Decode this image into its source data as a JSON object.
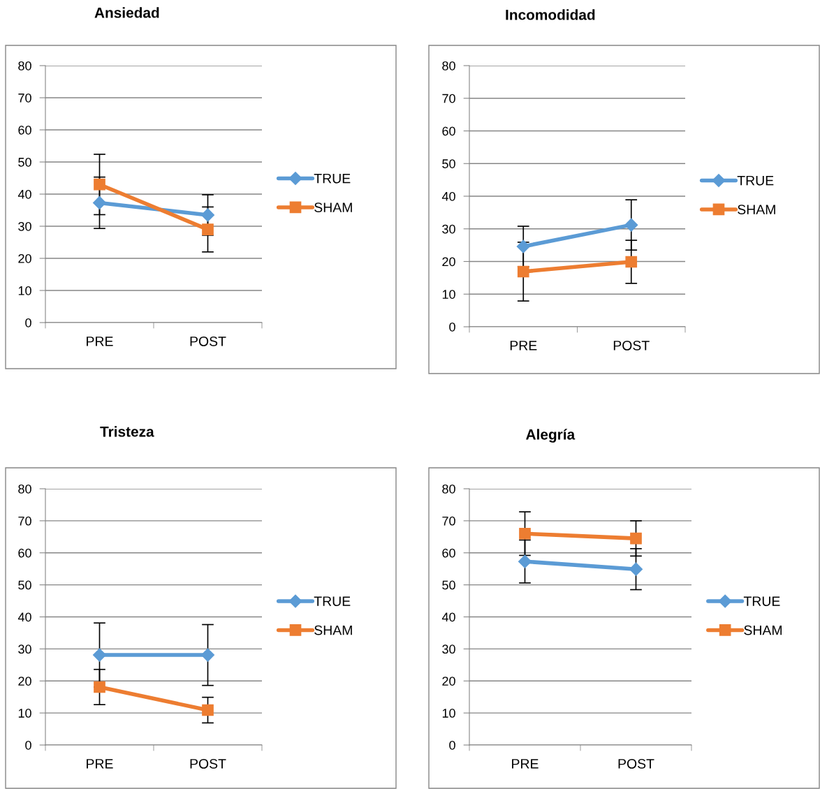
{
  "chart_data": [
    {
      "type": "line",
      "title": "Ansiedad",
      "categories": [
        "PRE",
        "POST"
      ],
      "ylim": [
        0,
        80
      ],
      "yticks": [
        0,
        10,
        20,
        30,
        40,
        50,
        60,
        70,
        80
      ],
      "grid": "y",
      "legend": "right",
      "line_style": "solid",
      "series": [
        {
          "name": "TRUE",
          "color": "#5b9bd5",
          "marker": "diamond",
          "values": [
            37.3,
            33.5
          ],
          "errors": [
            8,
            6.3
          ]
        },
        {
          "name": "SHAM",
          "color": "#ed7d31",
          "marker": "square",
          "values": [
            43,
            29
          ],
          "errors": [
            9.4,
            7
          ]
        }
      ]
    },
    {
      "type": "line",
      "title": "Incomodidad",
      "categories": [
        "PRE",
        "POST"
      ],
      "ylim": [
        0,
        80
      ],
      "yticks": [
        0,
        10,
        20,
        30,
        40,
        50,
        60,
        70,
        80
      ],
      "grid": "y",
      "legend": "right",
      "line_style": "solid",
      "series": [
        {
          "name": "TRUE",
          "color": "#5b9bd5",
          "marker": "diamond",
          "values": [
            24.6,
            31.2
          ],
          "errors": [
            6.2,
            7.7
          ]
        },
        {
          "name": "SHAM",
          "color": "#ed7d31",
          "marker": "square",
          "values": [
            16.9,
            19.9
          ],
          "errors": [
            9,
            6.6
          ]
        }
      ]
    },
    {
      "type": "line",
      "title": "Tristeza",
      "categories": [
        "PRE",
        "POST"
      ],
      "ylim": [
        0,
        80
      ],
      "yticks": [
        0,
        10,
        20,
        30,
        40,
        50,
        60,
        70,
        80
      ],
      "grid": "y",
      "legend": "right",
      "line_style": "solid",
      "series": [
        {
          "name": "TRUE",
          "color": "#5b9bd5",
          "marker": "diamond",
          "values": [
            28.1,
            28.1
          ],
          "errors": [
            10,
            9.5
          ]
        },
        {
          "name": "SHAM",
          "color": "#ed7d31",
          "marker": "square",
          "values": [
            18.1,
            10.9
          ],
          "errors": [
            5.5,
            4
          ]
        }
      ]
    },
    {
      "type": "line",
      "title": "Alegría",
      "categories": [
        "PRE",
        "POST"
      ],
      "ylim": [
        0,
        80
      ],
      "yticks": [
        0,
        10,
        20,
        30,
        40,
        50,
        60,
        70,
        80
      ],
      "grid": "y",
      "legend": "right",
      "line_style": "solid",
      "series": [
        {
          "name": "TRUE",
          "color": "#5b9bd5",
          "marker": "diamond",
          "values": [
            57.3,
            54.9
          ],
          "errors": [
            6.7,
            6.4
          ]
        },
        {
          "name": "SHAM",
          "color": "#ed7d31",
          "marker": "square",
          "values": [
            66,
            64.5
          ],
          "errors": [
            6.8,
            5.5
          ]
        }
      ]
    }
  ]
}
